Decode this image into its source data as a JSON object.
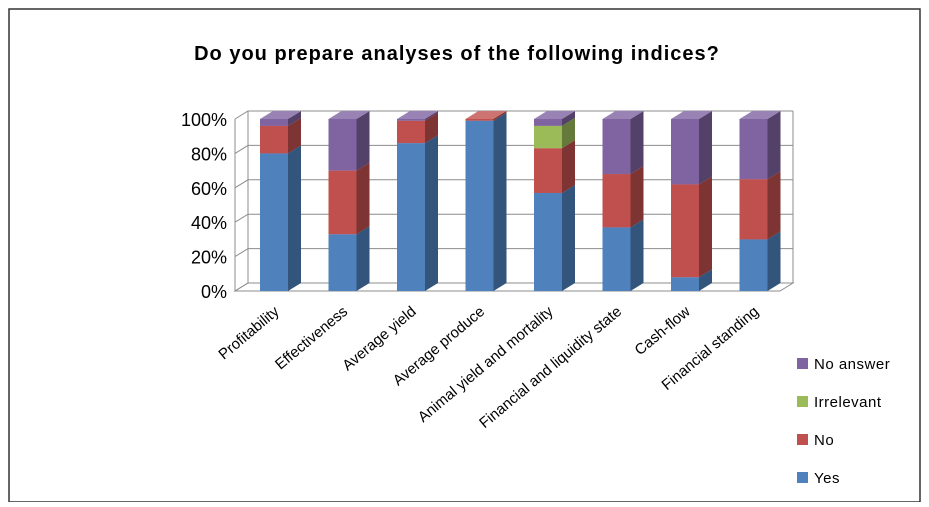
{
  "chart_data": {
    "type": "bar",
    "stacked": true,
    "percent": true,
    "title": "Do you prepare analyses of the following indices?",
    "categories": [
      "Profitability",
      "Effectiveness",
      "Average yield",
      "Average produce",
      "Animal yield and mortality",
      "Financial and liquidity state",
      "Cash-flow",
      "Financial standing"
    ],
    "series": [
      {
        "name": "Yes",
        "color": "#4F81BD",
        "values": [
          80,
          33,
          86,
          99,
          57,
          37,
          8,
          30
        ]
      },
      {
        "name": "No",
        "color": "#C0504D",
        "values": [
          16,
          37,
          13,
          1,
          26,
          31,
          54,
          35
        ]
      },
      {
        "name": "Irrelevant",
        "color": "#9BBB59",
        "values": [
          0,
          0,
          0,
          0,
          13,
          0,
          0,
          0
        ]
      },
      {
        "name": "No answer",
        "color": "#8064A2",
        "values": [
          4,
          30,
          1,
          0,
          4,
          32,
          38,
          35
        ]
      }
    ],
    "y_ticks": [
      "0%",
      "20%",
      "40%",
      "60%",
      "80%",
      "100%"
    ],
    "ylim": [
      0,
      100
    ],
    "grid": true,
    "legend_position": "bottom-right"
  }
}
